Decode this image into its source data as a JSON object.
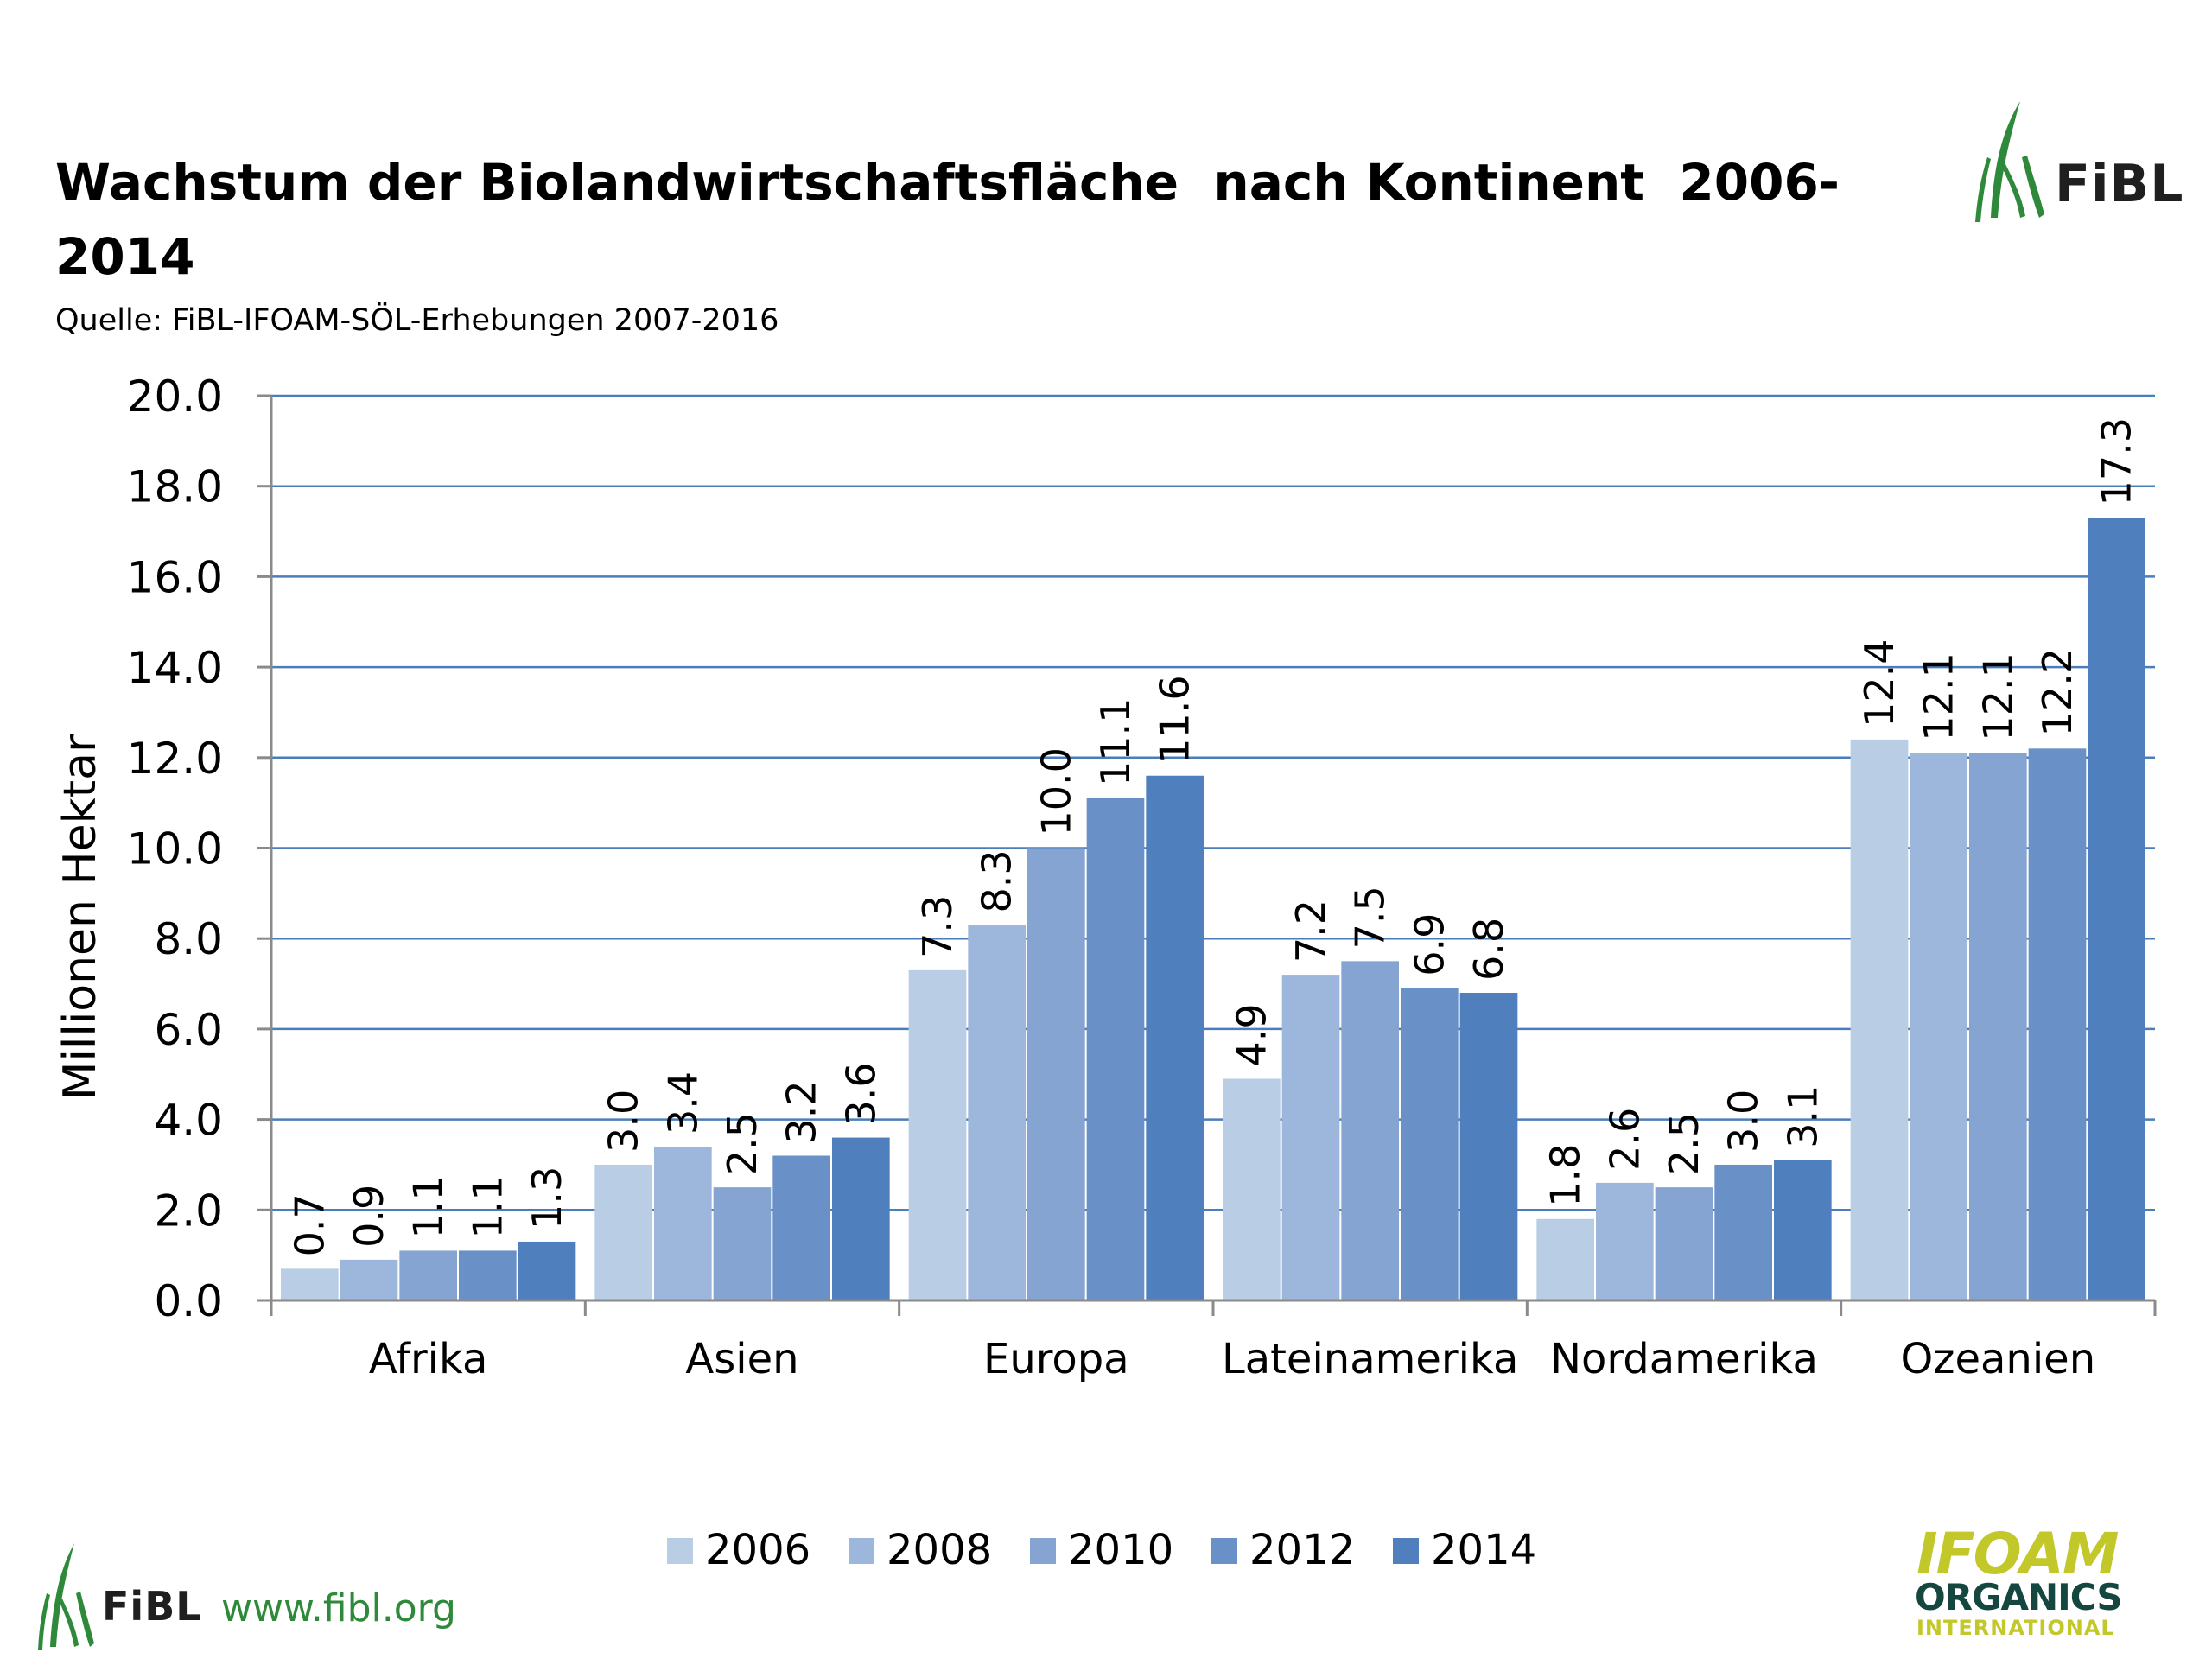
{
  "header": {
    "title_line_1": "Wachstum der Biolandwirtschaftsfläche  nach Kontinent  2006-",
    "title_line_2": "2014",
    "subtitle": "Quelle: FiBL-IFOAM-SÖL-Erhebungen 2007-2016"
  },
  "logos": {
    "fibl_text": "FiBL",
    "fibl_url": "www.fibl.org",
    "ifoam_main": "IFOAM",
    "ifoam_organics": "ORGANICS",
    "ifoam_international": "INTERNATIONAL",
    "fibl_green": "#2e8a3a",
    "ifoam_yellow": "#c2c82a",
    "ifoam_dark": "#15463f"
  },
  "chart_data": {
    "type": "bar",
    "title": "Wachstum der Biolandwirtschaftsfläche  nach Kontinent  2006-2014",
    "xlabel": "",
    "ylabel": "Millionen Hektar",
    "ylim": [
      0,
      20
    ],
    "yticks": [
      "0.0",
      "2.0",
      "4.0",
      "6.0",
      "8.0",
      "10.0",
      "12.0",
      "14.0",
      "16.0",
      "18.0",
      "20.0"
    ],
    "grid": true,
    "legend_position": "bottom",
    "categories": [
      "Afrika",
      "Asien",
      "Europa",
      "Lateinamerika",
      "Nordamerika",
      "Ozeanien"
    ],
    "series": [
      {
        "name": "2006",
        "color": "#b9cde5",
        "values": [
          0.7,
          3.0,
          7.3,
          4.9,
          1.8,
          12.4
        ],
        "labels": [
          "0.7",
          "3.0",
          "7.3",
          "4.9",
          "1.8",
          "12.4"
        ]
      },
      {
        "name": "2008",
        "color": "#9db6dc",
        "values": [
          0.9,
          3.4,
          8.3,
          7.2,
          2.6,
          12.1
        ],
        "labels": [
          "0.9",
          "3.4",
          "8.3",
          "7.2",
          "2.6",
          "12.1"
        ]
      },
      {
        "name": "2010",
        "color": "#85a4d2",
        "values": [
          1.1,
          2.5,
          10.0,
          7.5,
          2.5,
          12.1
        ],
        "labels": [
          "1.1",
          "2.5",
          "10.0",
          "7.5",
          "2.5",
          "12.1"
        ]
      },
      {
        "name": "2012",
        "color": "#6a90c8",
        "values": [
          1.1,
          3.2,
          11.1,
          6.9,
          3.0,
          12.2
        ],
        "labels": [
          "1.1",
          "3.2",
          "11.1",
          "6.9",
          "3.0",
          "12.2"
        ]
      },
      {
        "name": "2014",
        "color": "#4f7fbc",
        "values": [
          1.3,
          3.6,
          11.6,
          6.8,
          3.1,
          17.3
        ],
        "labels": [
          "1.3",
          "3.6",
          "11.6",
          "6.8",
          "3.1",
          "17.3"
        ]
      }
    ],
    "colors": {
      "gridline": "#4a7ebb",
      "axis": "#8a8a8a",
      "text": "#000000"
    }
  }
}
